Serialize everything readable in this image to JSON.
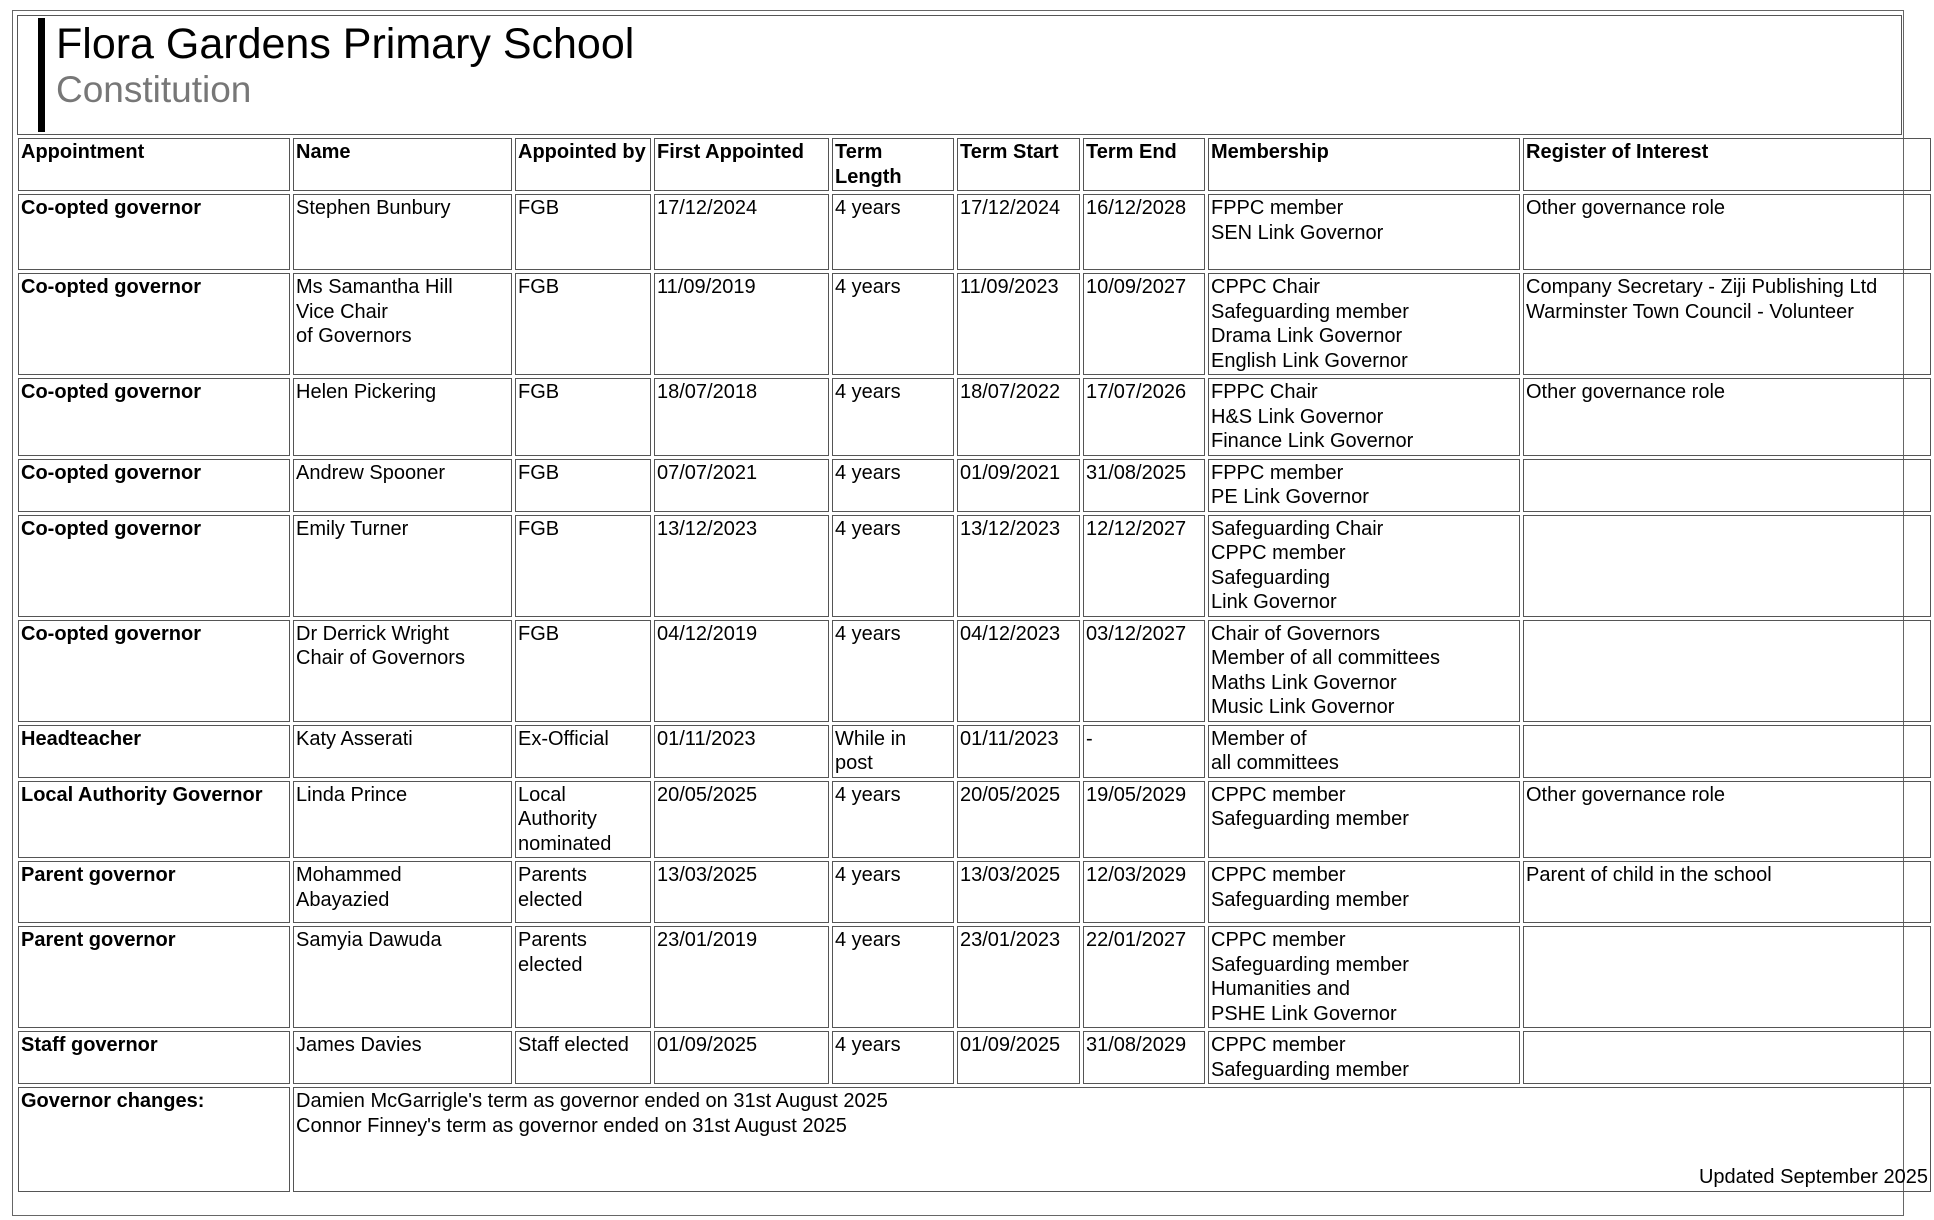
{
  "header": {
    "title": "Flora Gardens Primary School",
    "subtitle": "Constitution"
  },
  "table": {
    "columns": [
      "Appointment",
      "Name",
      "Appointed by",
      "First Appointed",
      "Term Length",
      "Term Start",
      "Term End",
      "Membership",
      "Register of Interest"
    ],
    "rows": [
      {
        "appointment": "Co-opted governor",
        "name": [
          "Stephen Bunbury"
        ],
        "appointed_by": [
          "FGB"
        ],
        "first_appointed": "17/12/2024",
        "term_length": [
          "4 years"
        ],
        "term_start": "17/12/2024",
        "term_end": "16/12/2028",
        "membership": [
          "FPPC member",
          "SEN Link Governor"
        ],
        "register": [
          "Other governance role"
        ]
      },
      {
        "appointment": "Co-opted governor",
        "name": [
          "Ms Samantha Hill",
          "Vice Chair",
          "of Governors"
        ],
        "appointed_by": [
          "FGB"
        ],
        "first_appointed": "11/09/2019",
        "term_length": [
          "4 years"
        ],
        "term_start": "11/09/2023",
        "term_end": "10/09/2027",
        "membership": [
          "CPPC Chair",
          "Safeguarding member",
          "Drama Link Governor",
          "English Link Governor"
        ],
        "register": [
          "Company Secretary - Ziji Publishing Ltd",
          "Warminster Town Council - Volunteer"
        ]
      },
      {
        "appointment": "Co-opted governor",
        "name": [
          "Helen Pickering"
        ],
        "appointed_by": [
          "FGB"
        ],
        "first_appointed": "18/07/2018",
        "term_length": [
          "4 years"
        ],
        "term_start": "18/07/2022",
        "term_end": "17/07/2026",
        "membership": [
          "FPPC Chair",
          "H&S Link Governor",
          "Finance Link Governor"
        ],
        "register": [
          "Other governance role"
        ]
      },
      {
        "appointment": "Co-opted governor",
        "name": [
          "Andrew Spooner"
        ],
        "appointed_by": [
          "FGB"
        ],
        "first_appointed": "07/07/2021",
        "term_length": [
          "4 years"
        ],
        "term_start": "01/09/2021",
        "term_end": "31/08/2025",
        "membership": [
          "FPPC member",
          "PE Link Governor"
        ],
        "register": []
      },
      {
        "appointment": "Co-opted governor",
        "name": [
          "Emily Turner"
        ],
        "appointed_by": [
          "FGB"
        ],
        "first_appointed": "13/12/2023",
        "term_length": [
          "4 years"
        ],
        "term_start": "13/12/2023",
        "term_end": "12/12/2027",
        "membership": [
          "Safeguarding Chair",
          "CPPC member",
          "Safeguarding",
          "Link Governor"
        ],
        "register": []
      },
      {
        "appointment": "Co-opted governor",
        "name": [
          "Dr Derrick Wright",
          "Chair of Governors"
        ],
        "appointed_by": [
          "FGB"
        ],
        "first_appointed": "04/12/2019",
        "term_length": [
          "4 years"
        ],
        "term_start": "04/12/2023",
        "term_end": "03/12/2027",
        "membership": [
          "Chair of Governors",
          "Member of all committees",
          "Maths Link Governor",
          "Music Link Governor"
        ],
        "register": []
      },
      {
        "appointment": "Headteacher",
        "name": [
          "Katy Asserati"
        ],
        "appointed_by": [
          "Ex-Official"
        ],
        "first_appointed": "01/11/2023",
        "term_length": [
          "While in",
          "post"
        ],
        "term_start": "01/11/2023",
        "term_end": "-",
        "membership": [
          "Member of",
          "all committees"
        ],
        "register": []
      },
      {
        "appointment": "Local Authority Governor",
        "name": [
          "Linda Prince"
        ],
        "appointed_by": [
          "Local",
          "Authority",
          "nominated"
        ],
        "first_appointed": "20/05/2025",
        "term_length": [
          "4 years"
        ],
        "term_start": "20/05/2025",
        "term_end": "19/05/2029",
        "membership": [
          "CPPC member",
          "Safeguarding member"
        ],
        "register": [
          "Other governance role"
        ]
      },
      {
        "appointment": "Parent governor",
        "name": [
          "Mohammed",
          "Abayazied"
        ],
        "appointed_by": [
          "Parents",
          "elected"
        ],
        "first_appointed": "13/03/2025",
        "term_length": [
          "4 years"
        ],
        "term_start": "13/03/2025",
        "term_end": "12/03/2029",
        "membership": [
          "CPPC member",
          "Safeguarding member"
        ],
        "register": [
          "Parent of child in the school"
        ]
      },
      {
        "appointment": "Parent governor",
        "name": [
          "Samyia Dawuda"
        ],
        "appointed_by": [
          "Parents",
          "elected"
        ],
        "first_appointed": "23/01/2019",
        "term_length": [
          "4 years"
        ],
        "term_start": "23/01/2023",
        "term_end": "22/01/2027",
        "membership": [
          "CPPC member",
          "Safeguarding member",
          "Humanities and",
          "PSHE Link Governor"
        ],
        "register": []
      },
      {
        "appointment": "Staff governor",
        "name": [
          "James Davies"
        ],
        "appointed_by": [
          "Staff elected"
        ],
        "first_appointed": "01/09/2025",
        "term_length": [
          "4 years"
        ],
        "term_start": "01/09/2025",
        "term_end": "31/08/2029",
        "membership": [
          "CPPC member",
          "Safeguarding member"
        ],
        "register": []
      }
    ]
  },
  "changes": {
    "label": "Governor changes:",
    "lines": [
      "Damien McGarrigle's term as governor ended on 31st August 2025",
      "Connor Finney's term as governor ended on 31st August 2025"
    ],
    "updated": "Updated September 2025"
  }
}
